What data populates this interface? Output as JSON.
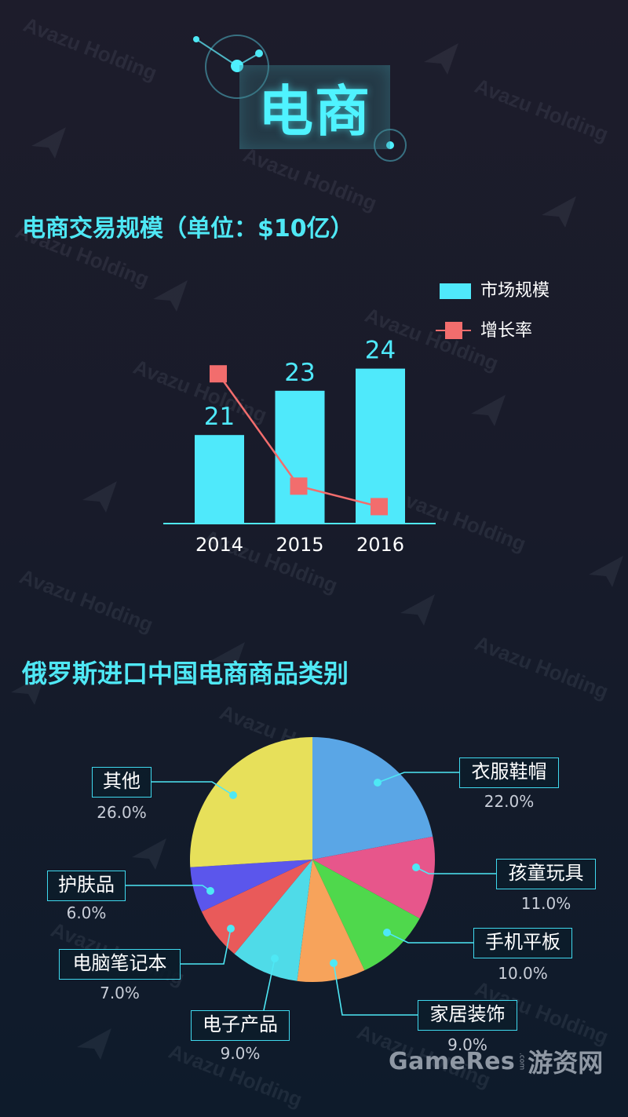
{
  "header": {
    "title": "电商"
  },
  "watermark": {
    "text": "Avazu Holding"
  },
  "chart_data": [
    {
      "type": "bar",
      "title": "电商交易规模（单位：$10亿）",
      "categories": [
        "2014",
        "2015",
        "2016"
      ],
      "series": [
        {
          "name": "市场规模",
          "type": "bar",
          "values": [
            21,
            23,
            24
          ],
          "color": "#4fe9fb"
        },
        {
          "name": "增长率",
          "type": "line",
          "values": [
            38,
            9.5,
            4.3
          ],
          "color": "#f26d6d"
        }
      ],
      "legend": "top-right",
      "grid": false
    },
    {
      "type": "pie",
      "title": "俄罗斯进口中国电商商品类别",
      "slices": [
        {
          "label": "衣服鞋帽",
          "value": 22.0,
          "value_label": "22.0%",
          "color": "#5aa6e6"
        },
        {
          "label": "孩童玩具",
          "value": 11.0,
          "value_label": "11.0%",
          "color": "#e7568b"
        },
        {
          "label": "手机平板",
          "value": 10.0,
          "value_label": "10.0%",
          "color": "#4fd84c"
        },
        {
          "label": "家居装饰",
          "value": 9.0,
          "value_label": "9.0%",
          "color": "#f7a35b"
        },
        {
          "label": "电子产品",
          "value": 9.0,
          "value_label": "9.0%",
          "color": "#4fdbe8"
        },
        {
          "label": "电脑笔记本",
          "value": 7.0,
          "value_label": "7.0%",
          "color": "#e95a5a"
        },
        {
          "label": "护肤品",
          "value": 6.0,
          "value_label": "6.0%",
          "color": "#5b56ec"
        },
        {
          "label": "其他",
          "value": 26.0,
          "value_label": "26.0%",
          "color": "#e7e05a"
        }
      ]
    }
  ],
  "footer": {
    "brand": "GameRes",
    "brand_suffix": ".com",
    "brand_cn": "游资网"
  },
  "colors": {
    "background_top": "#1d1c2b",
    "background_bottom": "#0e1b2b",
    "accent": "#4fe8f5",
    "label_border": "#3fd9ee",
    "percent_text": "#c9ced8"
  }
}
